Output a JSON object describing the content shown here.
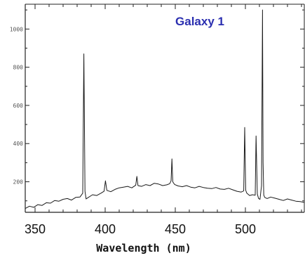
{
  "chart_data": {
    "type": "line",
    "title": "Galaxy 1",
    "xlabel": "Wavelength (nm)",
    "ylabel": "",
    "xlim": [
      343,
      542
    ],
    "ylim": [
      40,
      1130
    ],
    "x_ticks": [
      350,
      400,
      450,
      500
    ],
    "x_tick_labels": [
      "350",
      "400",
      "450",
      "500"
    ],
    "y_ticks": [
      200,
      400,
      600,
      800,
      1000
    ],
    "y_tick_labels": [
      "200",
      "400",
      "600",
      "800",
      "1000"
    ],
    "grid": false,
    "legend": "none",
    "colors": {
      "title": "#2b2fb0",
      "line": "#1a1a1a",
      "axis": "#222222"
    },
    "series": [
      {
        "x": [
          343,
          346,
          349,
          352,
          355,
          358,
          361,
          364,
          367,
          370,
          373,
          376,
          379,
          382,
          384,
          384.8,
          385.6,
          386.4,
          388,
          391,
          394,
          397,
          399.2,
          400.2,
          401.2,
          404,
          407,
          410,
          413,
          416,
          419,
          421.8,
          422.6,
          423.4,
          426,
          429,
          432,
          435,
          438,
          441,
          444,
          446,
          447,
          447.6,
          448.2,
          449.5,
          452,
          455,
          458,
          461,
          464,
          467,
          470,
          473,
          476,
          479,
          482,
          485,
          488,
          491,
          494,
          497,
          498.8,
          499.5,
          500.2,
          501,
          503,
          505,
          507,
          507.6,
          508.5,
          509.4,
          510.4,
          511.5,
          512.2,
          512.6,
          513.1,
          513.8,
          515.5,
          518,
          521,
          524,
          527,
          530,
          533,
          536,
          539,
          542
        ],
        "y": [
          60,
          72,
          66,
          80,
          76,
          90,
          88,
          102,
          98,
          108,
          112,
          104,
          118,
          120,
          140,
          870,
          150,
          110,
          118,
          132,
          128,
          140,
          150,
          205,
          155,
          148,
          160,
          168,
          172,
          176,
          168,
          182,
          228,
          180,
          176,
          185,
          180,
          192,
          188,
          180,
          184,
          190,
          205,
          320,
          200,
          186,
          178,
          174,
          180,
          172,
          168,
          176,
          170,
          166,
          164,
          170,
          162,
          160,
          166,
          158,
          150,
          146,
          152,
          485,
          156,
          140,
          128,
          132,
          130,
          440,
          135,
          112,
          108,
          180,
          1100,
          300,
          130,
          118,
          112,
          120,
          114,
          108,
          102,
          110,
          104,
          98,
          96,
          92
        ]
      }
    ]
  }
}
